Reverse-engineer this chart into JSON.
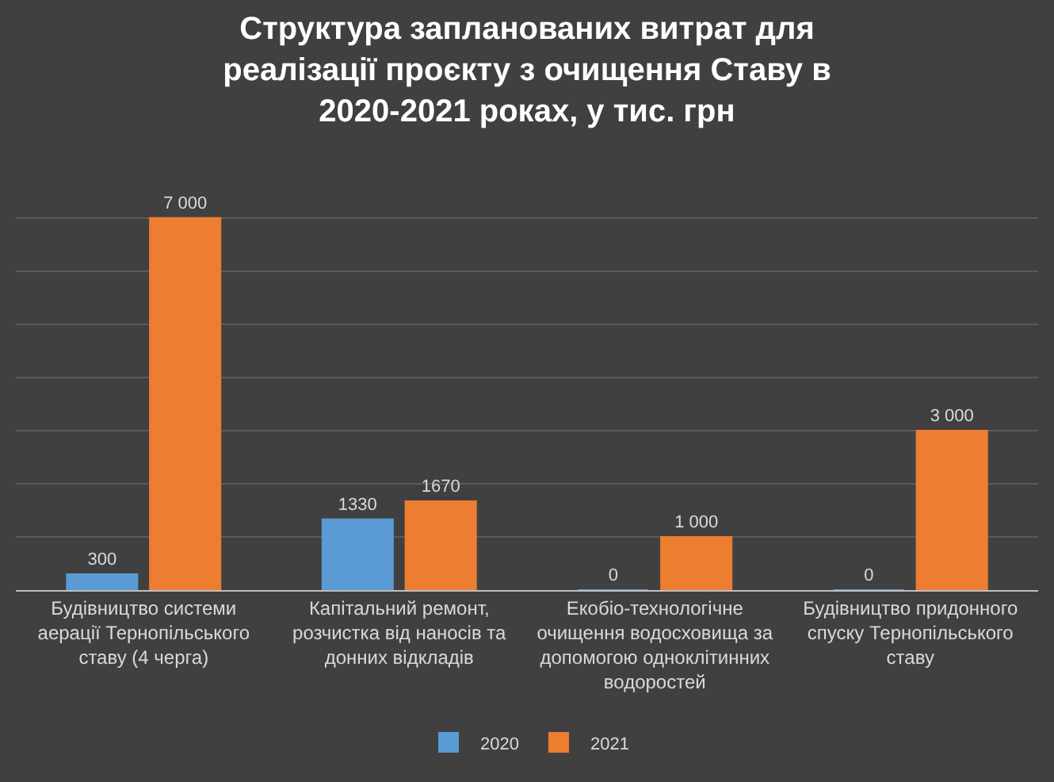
{
  "chart_data": {
    "type": "bar",
    "title": "Структура запланованих витрат для реалізації проєкту з очищення Ставу в 2020-2021 роках, у тис. грн",
    "categories": [
      "Будівництво системи аерації Тернопільського ставу (4 черга)",
      "Капітальний ремонт, розчистка від наносів та донних відкладів",
      "Екобіо-технологічне очищення водосховища за допомогою одноклітинних водоростей",
      "Будівництво придонного спуску Тернопільського ставу"
    ],
    "series": [
      {
        "name": "2020",
        "color": "#5b9bd5",
        "values": [
          300,
          1330,
          0,
          0
        ],
        "value_labels": [
          "300",
          "1330",
          "0",
          "0"
        ]
      },
      {
        "name": "2021",
        "color": "#ed7d31",
        "values": [
          7000,
          1670,
          1000,
          3000
        ],
        "value_labels": [
          "7 000",
          "1670",
          "1 000",
          "3 000"
        ]
      }
    ],
    "grid": "y",
    "legend": "bottom",
    "tick_labels": "x"
  }
}
